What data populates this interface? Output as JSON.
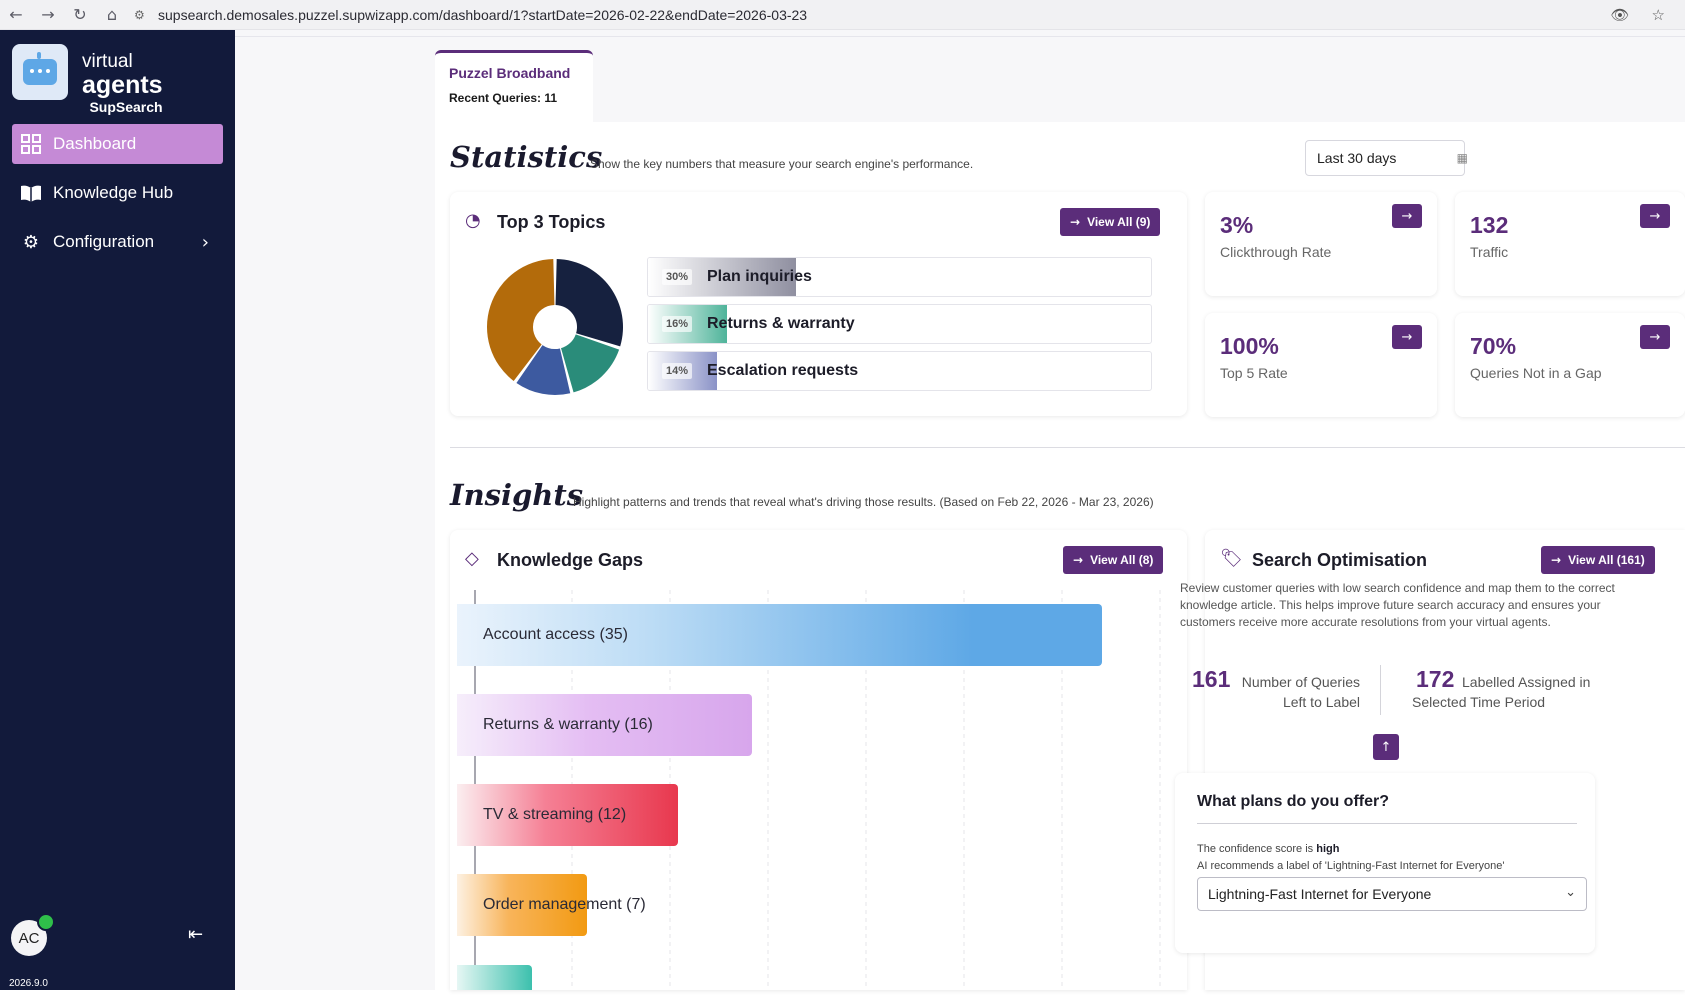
{
  "browser": {
    "back": "←",
    "forward": "→",
    "reload": "↻",
    "home": "⌂",
    "url": "supsearch.demosales.puzzel.supwizapp.com/dashboard/1?startDate=2026-02-22&endDate=2026-03-23"
  },
  "sidebar": {
    "brand": {
      "line1": "virtual",
      "line2": "agents",
      "line3": "SupSearch"
    },
    "items": [
      {
        "label": "Dashboard",
        "icon": "dashboard-icon",
        "active": true
      },
      {
        "label": "Knowledge Hub",
        "icon": "book-icon",
        "active": false
      },
      {
        "label": "Configuration",
        "icon": "gear-icon",
        "active": false
      }
    ],
    "avatar": "AC",
    "version": "2026.9.0"
  },
  "tab": {
    "title": "Puzzel Broadband",
    "subtitle": "Recent Queries: 11"
  },
  "statistics": {
    "title": "Statistics",
    "subtitle": "Show the key numbers that measure your search engine's performance.",
    "range": "Last 30 days",
    "top_topics": {
      "title": "Top 3 Topics",
      "view_all": "View All (9)",
      "items": [
        {
          "pct": "30%",
          "label": "Plan inquiries",
          "value": 30,
          "color": "#8f8fa0"
        },
        {
          "pct": "16%",
          "label": "Returns & warranty",
          "value": 16,
          "color": "#4fb49a"
        },
        {
          "pct": "14%",
          "label": "Escalation requests",
          "value": 14,
          "color": "#8a92c7"
        }
      ],
      "donut": [
        {
          "value": 40,
          "color": "#b36b0b"
        },
        {
          "value": 30,
          "color": "#16213f"
        },
        {
          "value": 16,
          "color": "#2a8c7a"
        },
        {
          "value": 14,
          "color": "#3d5aa0"
        }
      ]
    },
    "cards": [
      {
        "value": "3%",
        "label": "Clickthrough Rate"
      },
      {
        "value": "132",
        "label": "Traffic"
      },
      {
        "value": "100%",
        "label": "Top 5 Rate"
      },
      {
        "value": "70%",
        "label": "Queries Not in a Gap"
      }
    ]
  },
  "insights": {
    "title": "Insights",
    "subtitle": "Highlight patterns and trends that reveal what's driving those results. (Based on Feb 22, 2026 - Mar 23, 2026)",
    "knowledge_gaps": {
      "title": "Knowledge Gaps",
      "view_all": "View All (8)",
      "bars": [
        {
          "label": "Account access (35)",
          "value": 35
        },
        {
          "label": "Returns & warranty (16)",
          "value": 16
        },
        {
          "label": "TV & streaming (12)",
          "value": 12
        },
        {
          "label": "Order management (7)",
          "value": 7
        }
      ]
    },
    "search_optimisation": {
      "title": "Search Optimisation",
      "view_all": "View All (161)",
      "description": "Review customer queries with low search confidence and map them to the correct knowledge article. This helps improve future search accuracy and ensures your customers receive more accurate resolutions from your virtual agents.",
      "left_num": "161",
      "left_label_1": "Number of Queries",
      "left_label_2": "Left to Label",
      "right_num": "172",
      "right_label_1": "Labelled Assigned in",
      "right_label_2": "Selected Time Period",
      "question": "What plans do you offer?",
      "confidence_prefix": "The confidence score is",
      "confidence_value": "high",
      "ai_text": "AI recommends a label of 'Lightning-Fast Internet for Everyone'",
      "selected_label": "Lightning-Fast Internet for Everyone"
    }
  }
}
